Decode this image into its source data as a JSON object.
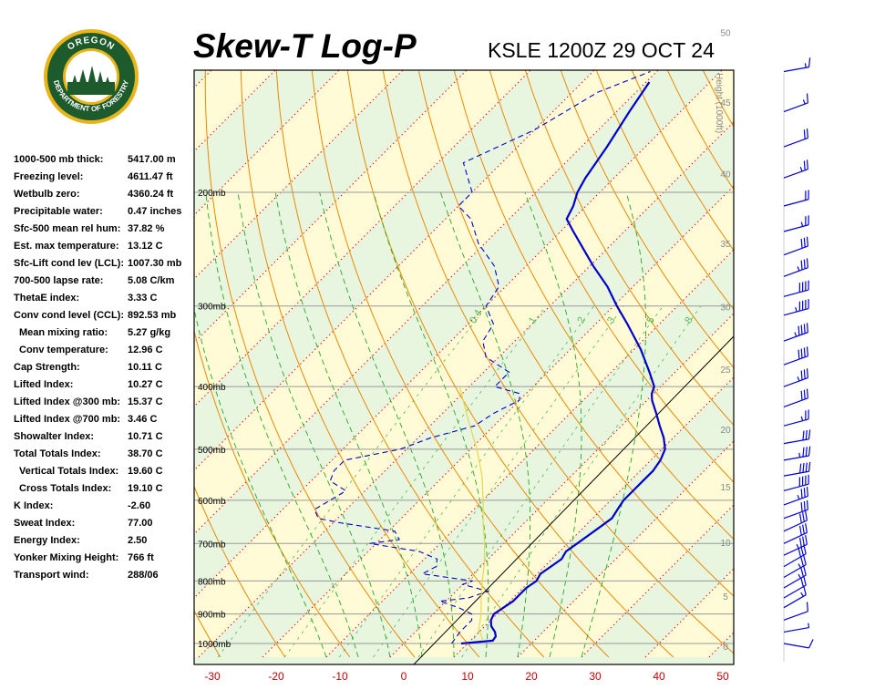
{
  "header": {
    "title": "Skew-T Log-P",
    "station": "KSLE 1200Z 29 OCT 24"
  },
  "logo": {
    "top_text": "OREGON",
    "bottom_text": "DEPARTMENT OF FORESTRY",
    "colors": {
      "ring": "#1d5a2c",
      "gold": "#e8b418",
      "sky": "#ffffff",
      "trees": "#1d5a2c"
    }
  },
  "indices": [
    {
      "label": "1000-500 mb thick:",
      "value": "5417.00 m"
    },
    {
      "label": "Freezing level:",
      "value": "4611.47 ft"
    },
    {
      "label": "Wetbulb zero:",
      "value": "4360.24 ft"
    },
    {
      "label": "Precipitable water:",
      "value": "0.47 inches"
    },
    {
      "label": "Sfc-500 mean rel hum:",
      "value": "37.82 %"
    },
    {
      "label": "Est. max temperature:",
      "value": "13.12 C"
    },
    {
      "label": "Sfc-Lift cond lev (LCL):",
      "value": "1007.30 mb"
    },
    {
      "label": "700-500 lapse rate:",
      "value": "5.08 C/km"
    },
    {
      "label": "ThetaE index:",
      "value": "3.33 C"
    },
    {
      "label": "Conv cond level (CCL):",
      "value": "892.53 mb"
    },
    {
      "label": "Mean mixing ratio:",
      "value": "5.27 g/kg",
      "indent": true
    },
    {
      "label": "Conv temperature:",
      "value": "12.96 C",
      "indent": true
    },
    {
      "label": "Cap Strength:",
      "value": "10.11 C"
    },
    {
      "label": "Lifted Index:",
      "value": "10.27 C"
    },
    {
      "label": "Lifted Index @300 mb:",
      "value": "15.37 C"
    },
    {
      "label": "Lifted Index @700 mb:",
      "value": "3.46 C"
    },
    {
      "label": "Showalter Index:",
      "value": "10.71 C"
    },
    {
      "label": "Total Totals Index:",
      "value": "38.70 C"
    },
    {
      "label": "Vertical Totals Index:",
      "value": "19.60 C",
      "indent": true
    },
    {
      "label": "Cross Totals Index:",
      "value": "19.10 C",
      "indent": true
    },
    {
      "label": "K Index:",
      "value": "-2.60"
    },
    {
      "label": "Sweat Index:",
      "value": "77.00"
    },
    {
      "label": "Energy Index:",
      "value": "2.50"
    },
    {
      "label": "Yonker Mixing Height:",
      "value": "766 ft"
    },
    {
      "label": "Transport wind:",
      "value": "288/06"
    }
  ],
  "chart_data": {
    "type": "line",
    "title": "Skew-T Log-P",
    "subtitle": "KSLE 1200Z 29 OCT 24",
    "xlim": [
      -30,
      50
    ],
    "xticks": [
      -30,
      -20,
      -10,
      0,
      10,
      20,
      30,
      40,
      50
    ],
    "pressure_levels": [
      {
        "p": 200,
        "label": "200mb"
      },
      {
        "p": 300,
        "label": "300mb"
      },
      {
        "p": 400,
        "label": "400mb"
      },
      {
        "p": 500,
        "label": "500mb"
      },
      {
        "p": 600,
        "label": "600mb"
      },
      {
        "p": 700,
        "label": "700mb"
      },
      {
        "p": 800,
        "label": "800mb"
      },
      {
        "p": 900,
        "label": "900mb"
      },
      {
        "p": 1000,
        "label": "1000mb"
      }
    ],
    "height_axis": {
      "label": "Height (1000ft)",
      "ticks": [
        {
          "h": 0,
          "p": 1010
        },
        {
          "h": 5,
          "p": 844
        },
        {
          "h": 10,
          "p": 697
        },
        {
          "h": 15,
          "p": 572
        },
        {
          "h": 20,
          "p": 466
        },
        {
          "h": 25,
          "p": 376
        },
        {
          "h": 30,
          "p": 301
        },
        {
          "h": 35,
          "p": 240
        },
        {
          "h": 40,
          "p": 187
        },
        {
          "h": 45,
          "p": 145
        },
        {
          "h": 50,
          "p": 113
        }
      ]
    },
    "mixing_ratio_labels": [
      "0.4",
      "1",
      "2",
      "3",
      "5",
      "8"
    ],
    "series": [
      {
        "role": "temperature",
        "color": "#0000cc",
        "points": [
          [
            1000,
            9.0
          ],
          [
            990,
            13.5
          ],
          [
            975,
            13.3
          ],
          [
            960,
            12.5
          ],
          [
            940,
            11.0
          ],
          [
            920,
            10.0
          ],
          [
            900,
            9.5
          ],
          [
            880,
            10.0
          ],
          [
            860,
            10.5
          ],
          [
            840,
            10.5
          ],
          [
            820,
            10.5
          ],
          [
            800,
            11.0
          ],
          [
            780,
            10.5
          ],
          [
            760,
            11.0
          ],
          [
            740,
            11.5
          ],
          [
            720,
            11.0
          ],
          [
            700,
            11.5
          ],
          [
            680,
            12.0
          ],
          [
            660,
            12.5
          ],
          [
            640,
            13.0
          ],
          [
            620,
            12.5
          ],
          [
            600,
            12.0
          ],
          [
            580,
            12.0
          ],
          [
            560,
            12.0
          ],
          [
            540,
            12.0
          ],
          [
            520,
            11.5
          ],
          [
            500,
            10.5
          ],
          [
            480,
            8.5
          ],
          [
            460,
            6.0
          ],
          [
            440,
            3.5
          ],
          [
            420,
            0.8
          ],
          [
            410,
            -0.3
          ],
          [
            400,
            -1.0
          ],
          [
            380,
            -4.0
          ],
          [
            350,
            -9.0
          ],
          [
            320,
            -15.0
          ],
          [
            300,
            -19.5
          ],
          [
            280,
            -24.0
          ],
          [
            260,
            -29.5
          ],
          [
            230,
            -38.0
          ],
          [
            220,
            -41.0
          ],
          [
            210,
            -42.0
          ],
          [
            200,
            -43.5
          ],
          [
            190,
            -44.5
          ],
          [
            170,
            -46.0
          ],
          [
            150,
            -48.0
          ],
          [
            135,
            -49.5
          ]
        ]
      },
      {
        "role": "dewpoint",
        "color": "#0000cc",
        "dashed": true,
        "points": [
          [
            1000,
            7.5
          ],
          [
            960,
            7.0
          ],
          [
            920,
            7.0
          ],
          [
            900,
            6.0
          ],
          [
            880,
            3.0
          ],
          [
            860,
            -1.0
          ],
          [
            850,
            3.0
          ],
          [
            830,
            5.0
          ],
          [
            810,
            0.0
          ],
          [
            800,
            1.0
          ],
          [
            780,
            -8.0
          ],
          [
            760,
            -7.0
          ],
          [
            740,
            -8.0
          ],
          [
            720,
            -12.0
          ],
          [
            700,
            -21.0
          ],
          [
            690,
            -17.0
          ],
          [
            670,
            -19.0
          ],
          [
            650,
            -29.0
          ],
          [
            640,
            -33.0
          ],
          [
            620,
            -35.0
          ],
          [
            600,
            -34.0
          ],
          [
            580,
            -33.0
          ],
          [
            560,
            -37.0
          ],
          [
            540,
            -38.0
          ],
          [
            520,
            -38.0
          ],
          [
            500,
            -31.0
          ],
          [
            480,
            -28.0
          ],
          [
            460,
            -23.0
          ],
          [
            440,
            -22.0
          ],
          [
            420,
            -20.0
          ],
          [
            410,
            -21.0
          ],
          [
            400,
            -26.0
          ],
          [
            380,
            -26.0
          ],
          [
            360,
            -32.0
          ],
          [
            340,
            -35.0
          ],
          [
            320,
            -36.0
          ],
          [
            300,
            -40.0
          ],
          [
            280,
            -41.0
          ],
          [
            260,
            -45.0
          ],
          [
            240,
            -51.0
          ],
          [
            220,
            -56.0
          ],
          [
            210,
            -60.0
          ],
          [
            200,
            -60.0
          ],
          [
            180,
            -66.0
          ],
          [
            160,
            -60.0
          ],
          [
            140,
            -56.0
          ],
          [
            130,
            -51.0
          ]
        ]
      },
      {
        "role": "parcel",
        "color": "#e6d84a",
        "points": [
          [
            990,
            12.0
          ],
          [
            950,
            9.5
          ],
          [
            900,
            7.5
          ],
          [
            850,
            5.0
          ],
          [
            800,
            2.5
          ],
          [
            750,
            0.0
          ],
          [
            700,
            -3.0
          ],
          [
            650,
            -6.5
          ],
          [
            600,
            -10.0
          ],
          [
            550,
            -14.0
          ],
          [
            500,
            -19.0
          ],
          [
            450,
            -25.0
          ],
          [
            400,
            -31.5
          ]
        ]
      }
    ],
    "wind_profile": [
      {
        "p": 1000,
        "dir": 280,
        "kt": 10
      },
      {
        "p": 960,
        "dir": 260,
        "kt": 8
      },
      {
        "p": 920,
        "dir": 250,
        "kt": 10
      },
      {
        "p": 880,
        "dir": 240,
        "kt": 15
      },
      {
        "p": 850,
        "dir": 240,
        "kt": 20
      },
      {
        "p": 820,
        "dir": 240,
        "kt": 25
      },
      {
        "p": 790,
        "dir": 240,
        "kt": 25
      },
      {
        "p": 760,
        "dir": 240,
        "kt": 30
      },
      {
        "p": 730,
        "dir": 245,
        "kt": 35
      },
      {
        "p": 700,
        "dir": 245,
        "kt": 30
      },
      {
        "p": 670,
        "dir": 245,
        "kt": 30
      },
      {
        "p": 640,
        "dir": 250,
        "kt": 30
      },
      {
        "p": 610,
        "dir": 250,
        "kt": 35
      },
      {
        "p": 580,
        "dir": 255,
        "kt": 40
      },
      {
        "p": 550,
        "dir": 260,
        "kt": 40
      },
      {
        "p": 520,
        "dir": 260,
        "kt": 35
      },
      {
        "p": 490,
        "dir": 260,
        "kt": 30
      },
      {
        "p": 460,
        "dir": 255,
        "kt": 25
      },
      {
        "p": 430,
        "dir": 250,
        "kt": 30
      },
      {
        "p": 400,
        "dir": 250,
        "kt": 35
      },
      {
        "p": 370,
        "dir": 250,
        "kt": 40
      },
      {
        "p": 340,
        "dir": 250,
        "kt": 45
      },
      {
        "p": 310,
        "dir": 255,
        "kt": 45
      },
      {
        "p": 290,
        "dir": 255,
        "kt": 40
      },
      {
        "p": 270,
        "dir": 250,
        "kt": 35
      },
      {
        "p": 250,
        "dir": 250,
        "kt": 30
      },
      {
        "p": 230,
        "dir": 255,
        "kt": 25
      },
      {
        "p": 210,
        "dir": 255,
        "kt": 20
      },
      {
        "p": 190,
        "dir": 250,
        "kt": 25
      },
      {
        "p": 170,
        "dir": 250,
        "kt": 20
      },
      {
        "p": 150,
        "dir": 250,
        "kt": 15
      },
      {
        "p": 130,
        "dir": 260,
        "kt": 15
      }
    ],
    "colors": {
      "isotherm": "#ff0000",
      "dry_adiabat": "#ee8800",
      "moist_adiabat": "#22aa22",
      "mixing_ratio": "#22aa22",
      "reference_line": "#000000",
      "axis_ticks": "#cc0000",
      "band_green": "#e8f6e0",
      "band_yellow": "#fffbd6"
    }
  }
}
